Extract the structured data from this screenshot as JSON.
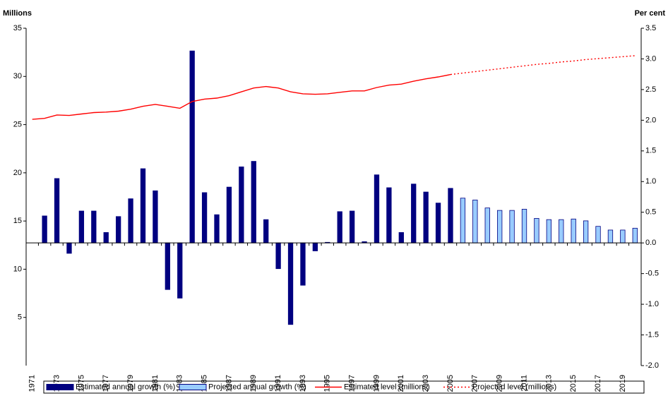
{
  "chart_data": {
    "type": "bar_line",
    "y_label": "Millions",
    "y2_label": "Per cent",
    "categories": [
      "1971",
      null,
      "1973",
      null,
      "1975",
      null,
      "1977",
      null,
      "1979",
      null,
      "1981",
      null,
      "1983",
      null,
      "1985",
      null,
      "1987",
      null,
      "1989",
      null,
      "1991",
      null,
      "1993",
      null,
      "1995",
      null,
      "1997",
      null,
      "1999",
      null,
      "2001",
      null,
      "2003",
      null,
      "2005",
      null,
      "2007",
      null,
      "2009",
      null,
      "2011",
      null,
      "2013",
      null,
      "2015",
      null,
      "2017",
      null,
      "2019",
      null
    ],
    "ylim": [
      0,
      35
    ],
    "yticks": [
      5,
      10,
      15,
      20,
      25,
      30,
      35
    ],
    "y2lim": [
      -2,
      3.5
    ],
    "y2ticks": [
      {
        "value": -2,
        "label": "-2.0"
      },
      {
        "value": -1.5,
        "label": "-1.5"
      },
      {
        "value": -1,
        "label": "-1.0"
      },
      {
        "value": -0.5,
        "label": "-0.5"
      },
      {
        "value": 0,
        "label": "0.0"
      },
      {
        "value": 0.5,
        "label": "0.5"
      },
      {
        "value": 1,
        "label": "1.0"
      },
      {
        "value": 1.5,
        "label": "1.5"
      },
      {
        "value": 2,
        "label": "2.0"
      },
      {
        "value": 2.5,
        "label": "2.5"
      },
      {
        "value": 3,
        "label": "3.0"
      },
      {
        "value": 3.5,
        "label": "3.5"
      }
    ],
    "series": [
      {
        "name": "Estimated annual growth (%)",
        "kind": "bar",
        "axis": "y2",
        "color": "#000080",
        "values": [
          null,
          0.44,
          1.05,
          -0.17,
          0.52,
          0.52,
          0.17,
          0.43,
          0.72,
          1.21,
          0.85,
          -0.76,
          -0.9,
          3.13,
          0.82,
          0.46,
          0.91,
          1.24,
          1.33,
          0.38,
          -0.42,
          -1.33,
          -0.69,
          -0.13,
          0.01,
          0.51,
          0.52,
          0.02,
          1.11,
          0.9,
          0.17,
          0.96,
          0.83,
          0.65,
          0.89,
          null,
          null,
          null,
          null,
          null,
          null,
          null,
          null,
          null,
          null,
          null,
          null,
          null,
          null,
          null
        ]
      },
      {
        "name": "Projected annual growth (%)",
        "kind": "bar",
        "axis": "y2",
        "color": "#99ccff",
        "values": [
          null,
          null,
          null,
          null,
          null,
          null,
          null,
          null,
          null,
          null,
          null,
          null,
          null,
          null,
          null,
          null,
          null,
          null,
          null,
          null,
          null,
          null,
          null,
          null,
          null,
          null,
          null,
          null,
          null,
          null,
          null,
          null,
          null,
          null,
          null,
          0.73,
          0.7,
          0.57,
          0.53,
          0.53,
          0.55,
          0.4,
          0.38,
          0.38,
          0.39,
          0.36,
          0.27,
          0.21,
          0.21,
          0.24
        ]
      },
      {
        "name": "Estimated level (millions)",
        "kind": "line",
        "dash": false,
        "color": "#ff0000",
        "values": [
          25.55,
          25.65,
          26.0,
          25.95,
          26.1,
          26.25,
          26.3,
          26.4,
          26.6,
          26.9,
          27.1,
          26.9,
          26.7,
          27.4,
          27.65,
          27.75,
          28.0,
          28.4,
          28.8,
          28.95,
          28.8,
          28.4,
          28.2,
          28.15,
          28.2,
          28.35,
          28.5,
          28.5,
          28.85,
          29.1,
          29.2,
          29.5,
          29.75,
          29.95,
          30.2,
          null,
          null,
          null,
          null,
          null,
          null,
          null,
          null,
          null,
          null,
          null,
          null,
          null,
          null,
          null
        ]
      },
      {
        "name": "Projected level (millions)",
        "kind": "line",
        "dash": true,
        "color": "#ff0000",
        "values": [
          null,
          null,
          null,
          null,
          null,
          null,
          null,
          null,
          null,
          null,
          null,
          null,
          null,
          null,
          null,
          null,
          null,
          null,
          null,
          null,
          null,
          null,
          null,
          null,
          null,
          null,
          null,
          null,
          null,
          null,
          null,
          null,
          null,
          null,
          30.2,
          30.35,
          30.5,
          30.65,
          30.8,
          30.95,
          31.1,
          31.25,
          31.35,
          31.5,
          31.6,
          31.75,
          31.85,
          31.95,
          32.05,
          32.15
        ]
      }
    ]
  }
}
